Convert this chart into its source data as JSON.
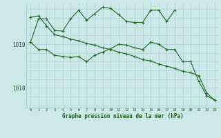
{
  "xlabel": "Graphe pression niveau de la mer (hPa)",
  "bg_color": "#cce8e8",
  "grid_color": "#aad0d0",
  "line_color": "#1a6b1a",
  "tick_color": "#1a5c1a",
  "label_color": "#1a5c1a",
  "xlim": [
    -0.5,
    23.5
  ],
  "ylim": [
    1017.55,
    1019.95
  ],
  "yticks": [
    1018,
    1019
  ],
  "ytick_labels": [
    "1018",
    "1019"
  ],
  "hours": [
    0,
    1,
    2,
    3,
    4,
    5,
    6,
    7,
    8,
    9,
    10,
    11,
    12,
    13,
    14,
    15,
    16,
    17,
    18,
    19,
    20,
    21,
    22,
    23
  ],
  "line1": [
    1019.05,
    1018.88,
    1018.88,
    1018.75,
    1018.72,
    1018.7,
    1018.72,
    1018.6,
    1018.75,
    1018.82,
    1018.9,
    1019.0,
    1018.98,
    1018.92,
    1018.88,
    1019.05,
    1019.0,
    1018.88,
    1018.88,
    1018.6,
    1018.6,
    1018.15,
    1017.82,
    1017.72
  ],
  "line2": [
    1019.62,
    1019.65,
    1019.42,
    1019.22,
    1019.18,
    1019.12,
    1019.08,
    1019.02,
    1018.98,
    1018.92,
    1018.88,
    1018.82,
    1018.78,
    1018.72,
    1018.65,
    1018.62,
    1018.55,
    1018.5,
    1018.45,
    1018.38,
    1018.35,
    1018.28,
    1017.88,
    1017.72
  ],
  "line3_x": [
    0,
    1,
    2,
    3,
    4,
    5,
    6,
    7,
    8,
    9,
    10,
    11,
    12,
    13,
    14,
    15,
    16,
    17,
    18
  ],
  "line3": [
    1019.05,
    1019.58,
    1019.58,
    1019.32,
    1019.3,
    1019.58,
    1019.78,
    1019.55,
    1019.7,
    1019.85,
    1019.82,
    1019.68,
    1019.52,
    1019.5,
    1019.5,
    1019.78,
    1019.78,
    1019.52,
    1019.78
  ]
}
